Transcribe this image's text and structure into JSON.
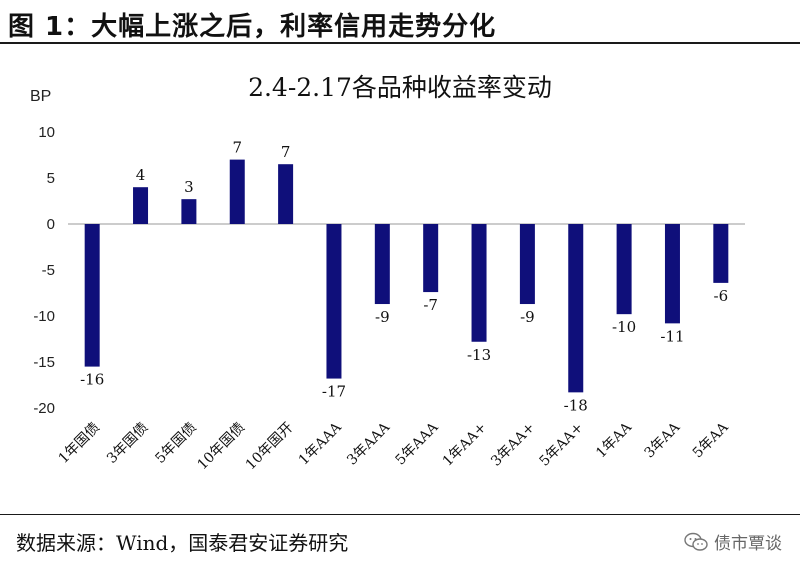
{
  "figure": {
    "title": "图  1：大幅上涨之后，利率信用走势分化"
  },
  "footer": {
    "source": "数据来源：Wind，国泰君安证券研究",
    "watermark": "债市覃谈"
  },
  "colors": {
    "bar": "#0f0f7a",
    "axis": "#999999"
  },
  "chart_data": {
    "type": "bar",
    "title": "2.4-2.17各品种收益率变动",
    "ylabel": "BP",
    "xlabel": "",
    "ylim": [
      -20,
      10
    ],
    "yticks": [
      10,
      5,
      0,
      -5,
      -10,
      -15,
      -20
    ],
    "grid": false,
    "categories": [
      "1年国债",
      "3年国债",
      "5年国债",
      "10年国债",
      "10年国开",
      "1年AAA",
      "3年AAA",
      "5年AAA",
      "1年AA+",
      "3年AA+",
      "5年AA+",
      "1年AA",
      "3年AA",
      "5年AA"
    ],
    "values": [
      -15.5,
      4,
      2.7,
      7,
      6.5,
      -16.8,
      -8.7,
      -7.4,
      -12.8,
      -8.7,
      -18.3,
      -9.8,
      -10.8,
      -6.4
    ],
    "data_labels": [
      "-16",
      "4",
      "3",
      "7",
      "7",
      "-17",
      "-9",
      "-7",
      "-13",
      "-9",
      "-18",
      "-10",
      "-11",
      "-6"
    ]
  }
}
